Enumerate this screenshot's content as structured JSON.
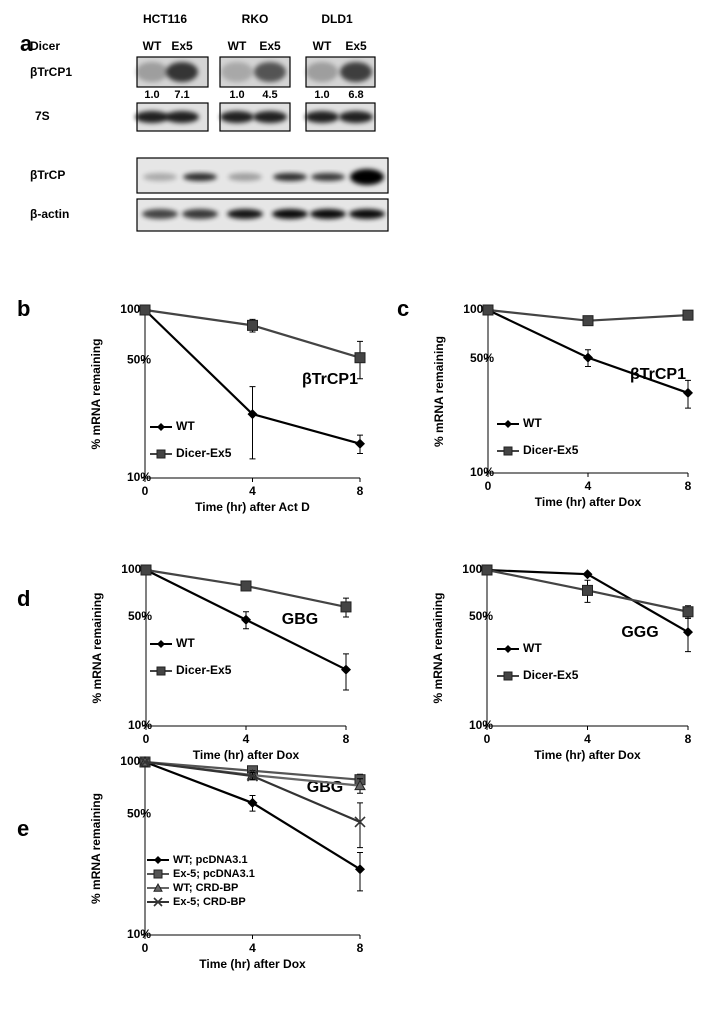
{
  "panel_a": {
    "label": "a",
    "row_header": "Dicer",
    "cell_lines": [
      "HCT116",
      "RKO",
      "DLD1"
    ],
    "genotypes": [
      "WT",
      "Ex5",
      "WT",
      "Ex5",
      "WT",
      "Ex5"
    ],
    "blots_top": [
      "βTrCP1",
      "7S"
    ],
    "quantification": [
      "1.0",
      "7.1",
      "1.0",
      "4.5",
      "1.0",
      "6.8"
    ],
    "blots_bottom": [
      "βTrCP",
      "β-actin"
    ]
  },
  "chart_data": [
    {
      "type": "line",
      "panel_label": "b",
      "annotation": "βTrCP1",
      "xlabel": "Time (hr) after Act D",
      "ylabel": "% mRNA remaining",
      "x": [
        0,
        4,
        8
      ],
      "xlim": [
        0,
        8
      ],
      "xticks": [
        0,
        4,
        8
      ],
      "ylim": [
        10,
        100
      ],
      "log_y": true,
      "yticks": [
        {
          "value": 10,
          "label": "10%"
        },
        {
          "value": 50,
          "label": "50%"
        },
        {
          "value": 100,
          "label": "100%"
        }
      ],
      "series": [
        {
          "name": "WT",
          "color": "#000000",
          "marker": "diamond",
          "values": [
            100,
            24,
            16
          ],
          "errors": [
            null,
            11,
            2
          ]
        },
        {
          "name": "Dicer-Ex5",
          "color": "#444444",
          "marker": "square",
          "values": [
            100,
            81,
            52
          ],
          "errors": [
            null,
            7,
            13
          ]
        }
      ]
    },
    {
      "type": "line",
      "panel_label": "c",
      "annotation": "βTrCP1",
      "xlabel": "Time (hr) after Dox",
      "ylabel": "% mRNA remaining",
      "x": [
        0,
        4,
        8
      ],
      "xlim": [
        0,
        8
      ],
      "xticks": [
        0,
        4,
        8
      ],
      "ylim": [
        10,
        100
      ],
      "log_y": true,
      "yticks": [
        {
          "value": 10,
          "label": "10%"
        },
        {
          "value": 50,
          "label": "50%"
        },
        {
          "value": 100,
          "label": "100%"
        }
      ],
      "series": [
        {
          "name": "WT",
          "color": "#000000",
          "marker": "diamond",
          "values": [
            100,
            51,
            31
          ],
          "errors": [
            null,
            6,
            6
          ]
        },
        {
          "name": "Dicer-Ex5",
          "color": "#444444",
          "marker": "square",
          "values": [
            100,
            86,
            93
          ],
          "errors": [
            null,
            3,
            2
          ]
        }
      ]
    },
    {
      "type": "line",
      "panel_label": "d",
      "annotation": "GBG",
      "xlabel": "Time (hr) after Dox",
      "ylabel": "% mRNA remaining",
      "x": [
        0,
        4,
        8
      ],
      "xlim": [
        0,
        8
      ],
      "xticks": [
        0,
        4,
        8
      ],
      "ylim": [
        10,
        100
      ],
      "log_y": true,
      "yticks": [
        {
          "value": 10,
          "label": "10%"
        },
        {
          "value": 50,
          "label": "50%"
        },
        {
          "value": 100,
          "label": "100%"
        }
      ],
      "series": [
        {
          "name": "WT",
          "color": "#000000",
          "marker": "diamond",
          "values": [
            100,
            48,
            23
          ],
          "errors": [
            null,
            6,
            6
          ]
        },
        {
          "name": "Dicer-Ex5",
          "color": "#444444",
          "marker": "square",
          "values": [
            100,
            79,
            58
          ],
          "errors": [
            null,
            5,
            8
          ]
        }
      ]
    },
    {
      "type": "line",
      "annotation": "GGG",
      "xlabel": "Time (hr) after Dox",
      "ylabel": "% mRNA remaining",
      "x": [
        0,
        4,
        8
      ],
      "xlim": [
        0,
        8
      ],
      "xticks": [
        0,
        4,
        8
      ],
      "ylim": [
        10,
        100
      ],
      "log_y": true,
      "yticks": [
        {
          "value": 10,
          "label": "10%"
        },
        {
          "value": 50,
          "label": "50%"
        },
        {
          "value": 100,
          "label": "100%"
        }
      ],
      "series": [
        {
          "name": "WT",
          "color": "#000000",
          "marker": "diamond",
          "values": [
            100,
            94,
            40
          ],
          "errors": [
            null,
            2,
            10
          ]
        },
        {
          "name": "Dicer-Ex5",
          "color": "#444444",
          "marker": "square",
          "values": [
            100,
            74,
            54
          ],
          "errors": [
            null,
            12,
            5
          ]
        }
      ]
    },
    {
      "type": "line",
      "panel_label": "e",
      "annotation": "GBG",
      "xlabel": "Time (hr) after Dox",
      "ylabel": "% mRNA remaining",
      "x": [
        0,
        4,
        8
      ],
      "xlim": [
        0,
        8
      ],
      "xticks": [
        0,
        4,
        8
      ],
      "ylim": [
        10,
        100
      ],
      "log_y": true,
      "yticks": [
        {
          "value": 10,
          "label": "10%"
        },
        {
          "value": 50,
          "label": "50%"
        },
        {
          "value": 100,
          "label": "100%"
        }
      ],
      "series": [
        {
          "name": "WT; pcDNA3.1",
          "color": "#000000",
          "marker": "diamond",
          "values": [
            100,
            58,
            24
          ],
          "errors": [
            null,
            6,
            6
          ]
        },
        {
          "name": "Ex-5; pcDNA3.1",
          "color": "#555555",
          "marker": "square",
          "values": [
            100,
            89,
            79
          ],
          "errors": [
            null,
            5,
            6
          ]
        },
        {
          "name": "WT; CRD-BP",
          "color": "#666666",
          "marker": "triangle",
          "values": [
            100,
            84,
            73
          ],
          "errors": [
            null,
            5,
            7
          ]
        },
        {
          "name": "Ex-5; CRD-BP",
          "color": "#333333",
          "marker": "cross",
          "values": [
            100,
            83,
            45
          ],
          "errors": [
            null,
            4,
            13
          ]
        }
      ]
    }
  ]
}
